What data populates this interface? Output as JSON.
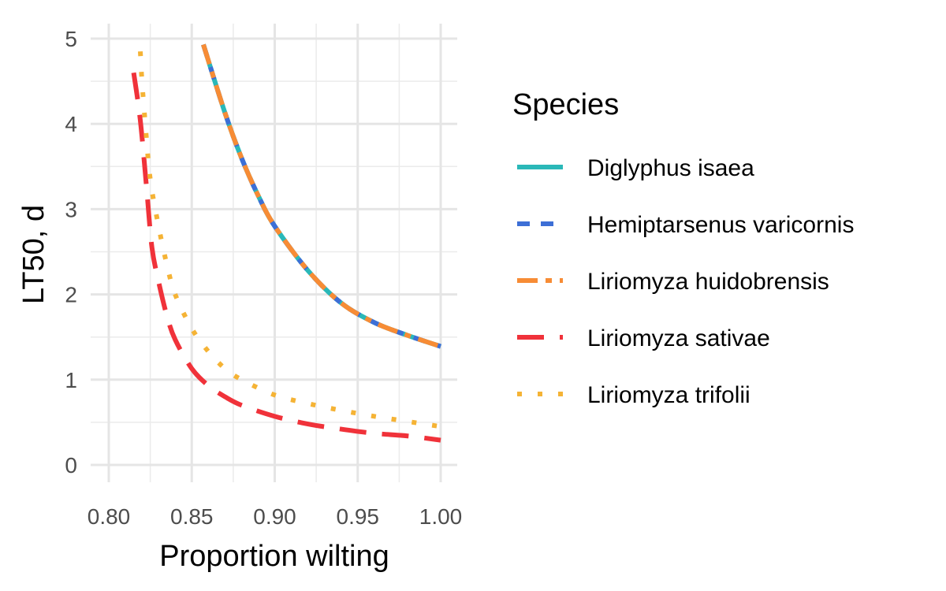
{
  "chart_data": {
    "type": "line",
    "xlabel": "Proportion wilting",
    "ylabel": "LT50, d",
    "xlim": [
      0.8,
      1.0
    ],
    "ylim": [
      0,
      5
    ],
    "x_ticks": [
      "0.80",
      "0.85",
      "0.90",
      "0.95",
      "1.00"
    ],
    "y_ticks": [
      "0",
      "1",
      "2",
      "3",
      "4",
      "5"
    ],
    "grid": true,
    "legend": {
      "title": "Species",
      "placement": "right"
    },
    "series": [
      {
        "name": "Diglyphus isaea",
        "color": "#2ab8b8",
        "dash": "solid",
        "x": [
          0.857,
          0.87,
          0.88,
          0.89,
          0.9,
          0.92,
          0.94,
          0.96,
          0.98,
          1.0
        ],
        "y": [
          4.93,
          4.13,
          3.6,
          3.16,
          2.8,
          2.28,
          1.9,
          1.67,
          1.52,
          1.39
        ]
      },
      {
        "name": "Hemiptarsenus varicornis",
        "color": "#3d6fd6",
        "dash": "dashed-short",
        "x": [
          0.857,
          0.87,
          0.88,
          0.89,
          0.9,
          0.92,
          0.94,
          0.96,
          0.98,
          1.0
        ],
        "y": [
          4.93,
          4.13,
          3.6,
          3.16,
          2.8,
          2.28,
          1.9,
          1.67,
          1.52,
          1.39
        ]
      },
      {
        "name": "Liriomyza huidobrensis",
        "color": "#f78c35",
        "dash": "dash-dot",
        "x": [
          0.857,
          0.87,
          0.88,
          0.89,
          0.9,
          0.92,
          0.94,
          0.96,
          0.98,
          1.0
        ],
        "y": [
          4.93,
          4.13,
          3.6,
          3.16,
          2.8,
          2.28,
          1.9,
          1.67,
          1.52,
          1.39
        ]
      },
      {
        "name": "Liriomyza sativae",
        "color": "#f0323a",
        "dash": "long-dash",
        "x": [
          0.815,
          0.818,
          0.82,
          0.823,
          0.826,
          0.83,
          0.835,
          0.84,
          0.85,
          0.86,
          0.87,
          0.88,
          0.9,
          0.92,
          0.94,
          0.96,
          0.98,
          1.0
        ],
        "y": [
          4.6,
          4.2,
          3.85,
          3.2,
          2.55,
          2.15,
          1.75,
          1.47,
          1.13,
          0.93,
          0.8,
          0.7,
          0.57,
          0.48,
          0.42,
          0.37,
          0.34,
          0.29
        ]
      },
      {
        "name": "Liriomyza trifolii",
        "color": "#f5b335",
        "dash": "dotted",
        "x": [
          0.819,
          0.82,
          0.822,
          0.825,
          0.83,
          0.835,
          0.84,
          0.85,
          0.86,
          0.87,
          0.88,
          0.9,
          0.92,
          0.94,
          0.96,
          0.98,
          1.0
        ],
        "y": [
          4.85,
          4.5,
          4.0,
          3.35,
          2.8,
          2.35,
          2.0,
          1.6,
          1.33,
          1.13,
          1.0,
          0.82,
          0.72,
          0.64,
          0.57,
          0.51,
          0.45
        ]
      }
    ]
  }
}
